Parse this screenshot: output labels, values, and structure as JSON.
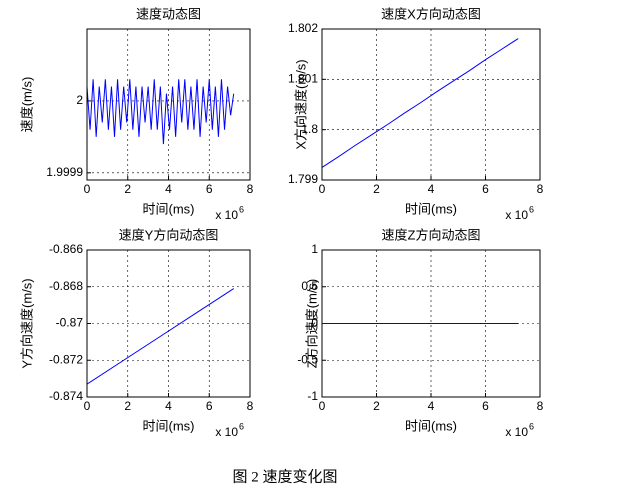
{
  "chart_data": [
    {
      "type": "line",
      "title": "速度动态图",
      "x_label": "时间(ms)",
      "y_label": "速度(m/s)",
      "x_scale": "x 10",
      "x_scale_exponent": "6",
      "x": [
        0,
        0.15,
        0.3,
        0.45,
        0.6,
        0.75,
        0.9,
        1.05,
        1.2,
        1.35,
        1.5,
        1.65,
        1.8,
        1.95,
        2.1,
        2.25,
        2.4,
        2.55,
        2.7,
        2.85,
        3,
        3.15,
        3.3,
        3.45,
        3.6,
        3.75,
        3.9,
        4.05,
        4.2,
        4.35,
        4.5,
        4.65,
        4.8,
        4.95,
        5.1,
        5.25,
        5.4,
        5.55,
        5.7,
        5.85,
        6,
        6.15,
        6.3,
        6.45,
        6.6,
        6.75,
        6.9,
        7.05,
        7.2
      ],
      "series": [
        {
          "color": "#0000ff",
          "values": [
            2.00002,
            1.99996,
            2.00003,
            1.99995,
            2.00002,
            1.99997,
            2.00003,
            1.99996,
            2.00002,
            1.99995,
            2.00003,
            1.99996,
            2.00002,
            1.99997,
            2.00003,
            1.99996,
            2.00002,
            1.99995,
            2.00002,
            1.99997,
            2.00002,
            1.99996,
            2.00003,
            1.99996,
            2.00002,
            1.99994,
            2.00001,
            1.99996,
            2.00002,
            1.99995,
            2.00003,
            1.99997,
            2.00003,
            1.99996,
            2.00002,
            1.99996,
            2.00003,
            1.99995,
            2.00002,
            1.99997,
            2.00003,
            1.99996,
            2.00002,
            1.99995,
            2.00003,
            1.99996,
            2.00002,
            1.99998,
            2.00001
          ]
        }
      ],
      "xlim": [
        0,
        8
      ],
      "xticks": [
        0,
        2,
        4,
        6,
        8
      ],
      "ylim": [
        1.99989,
        2.0001
      ],
      "yticks": [
        1.9999,
        2
      ],
      "grid": true
    },
    {
      "type": "line",
      "title": "速度X方向动态图",
      "x_label": "时间(ms)",
      "y_label": "X方向速度(m/s)",
      "x_scale": "x 10",
      "x_scale_exponent": "6",
      "x": [
        0,
        0.6,
        1.2,
        1.8,
        2.4,
        3,
        3.6,
        4.2,
        4.8,
        5.4,
        6,
        6.6,
        7.2
      ],
      "series": [
        {
          "color": "#0000ff",
          "values": [
            1.79925,
            1.79946,
            1.79968,
            1.79989,
            1.8001,
            1.80032,
            1.80053,
            1.80075,
            1.80096,
            1.80117,
            1.80139,
            1.8016,
            1.80181
          ]
        }
      ],
      "xlim": [
        0,
        8
      ],
      "xticks": [
        0,
        2,
        4,
        6,
        8
      ],
      "ylim": [
        1.799,
        1.802
      ],
      "yticks": [
        1.799,
        1.8,
        1.801,
        1.802
      ],
      "grid": true
    },
    {
      "type": "line",
      "title": "速度Y方向动态图",
      "x_label": "时间(ms)",
      "y_label": "Y方向速度(m/s)",
      "x_scale": "x 10",
      "x_scale_exponent": "6",
      "x": [
        0,
        1.8,
        3.6,
        5.4,
        7.2
      ],
      "series": [
        {
          "color": "#0000ff",
          "values": [
            -0.8733,
            -0.872,
            -0.8707,
            -0.8694,
            -0.8681
          ]
        }
      ],
      "xlim": [
        0,
        8
      ],
      "xticks": [
        0,
        2,
        4,
        6,
        8
      ],
      "ylim": [
        -0.874,
        -0.866
      ],
      "yticks": [
        -0.874,
        -0.872,
        -0.87,
        -0.868,
        -0.866
      ],
      "grid": true
    },
    {
      "type": "line",
      "title": "速度Z方向动态图",
      "x_label": "时间(ms)",
      "y_label": "Z方向速度(m/s)",
      "x_scale": "x 10",
      "x_scale_exponent": "6",
      "x": [
        0,
        7.2
      ],
      "series": [
        {
          "color": "#0000ff",
          "values": [
            0,
            0
          ]
        }
      ],
      "xlim": [
        0,
        8
      ],
      "xticks": [
        0,
        2,
        4,
        6,
        8
      ],
      "ylim": [
        -1,
        1
      ],
      "yticks": [
        -1,
        -0.5,
        0,
        0.5,
        1
      ],
      "grid": true
    }
  ],
  "caption": "图 2 速度变化图"
}
